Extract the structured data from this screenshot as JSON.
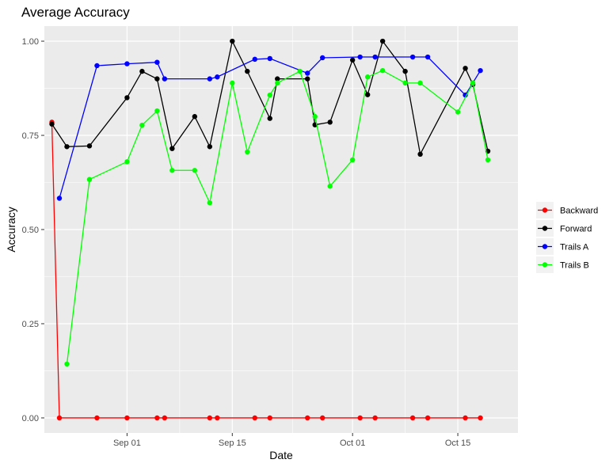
{
  "chart_data": {
    "type": "line",
    "title": "Average Accuracy",
    "xlabel": "Date",
    "ylabel": "Accuracy",
    "x_scale": "date",
    "xlim": [
      "2023-08-21",
      "2023-10-23"
    ],
    "ylim": [
      -0.04,
      1.04
    ],
    "x_ticks": [
      {
        "date": "2023-09-01",
        "label": "Sep 01"
      },
      {
        "date": "2023-09-15",
        "label": "Sep 15"
      },
      {
        "date": "2023-10-01",
        "label": "Oct 01"
      },
      {
        "date": "2023-10-15",
        "label": "Oct 15"
      }
    ],
    "y_ticks": [
      {
        "value": 0.0,
        "label": "0.00"
      },
      {
        "value": 0.25,
        "label": "0.25"
      },
      {
        "value": 0.5,
        "label": "0.50"
      },
      {
        "value": 0.75,
        "label": "0.75"
      },
      {
        "value": 1.0,
        "label": "1.00"
      }
    ],
    "grid": true,
    "legend_position": "right",
    "series": [
      {
        "name": "Backward",
        "color": "#ff0000",
        "points": [
          {
            "x": "2023-08-22",
            "y": 0.785
          },
          {
            "x": "2023-08-23",
            "y": 0.0
          },
          {
            "x": "2023-08-28",
            "y": 0.0
          },
          {
            "x": "2023-09-01",
            "y": 0.0
          },
          {
            "x": "2023-09-05",
            "y": 0.0
          },
          {
            "x": "2023-09-06",
            "y": 0.0
          },
          {
            "x": "2023-09-12",
            "y": 0.0
          },
          {
            "x": "2023-09-13",
            "y": 0.0
          },
          {
            "x": "2023-09-18",
            "y": 0.0
          },
          {
            "x": "2023-09-20",
            "y": 0.0
          },
          {
            "x": "2023-09-25",
            "y": 0.0
          },
          {
            "x": "2023-09-27",
            "y": 0.0
          },
          {
            "x": "2023-10-02",
            "y": 0.0
          },
          {
            "x": "2023-10-04",
            "y": 0.0
          },
          {
            "x": "2023-10-09",
            "y": 0.0
          },
          {
            "x": "2023-10-11",
            "y": 0.0
          },
          {
            "x": "2023-10-16",
            "y": 0.0
          },
          {
            "x": "2023-10-18",
            "y": 0.0
          }
        ]
      },
      {
        "name": "Forward",
        "color": "#000000",
        "points": [
          {
            "x": "2023-08-22",
            "y": 0.78
          },
          {
            "x": "2023-08-24",
            "y": 0.72
          },
          {
            "x": "2023-08-27",
            "y": 0.722
          },
          {
            "x": "2023-09-01",
            "y": 0.85
          },
          {
            "x": "2023-09-03",
            "y": 0.92
          },
          {
            "x": "2023-09-05",
            "y": 0.9
          },
          {
            "x": "2023-09-07",
            "y": 0.715
          },
          {
            "x": "2023-09-10",
            "y": 0.8
          },
          {
            "x": "2023-09-12",
            "y": 0.72
          },
          {
            "x": "2023-09-15",
            "y": 1.0
          },
          {
            "x": "2023-09-17",
            "y": 0.92
          },
          {
            "x": "2023-09-20",
            "y": 0.795
          },
          {
            "x": "2023-09-21",
            "y": 0.9
          },
          {
            "x": "2023-09-25",
            "y": 0.9
          },
          {
            "x": "2023-09-26",
            "y": 0.778
          },
          {
            "x": "2023-09-28",
            "y": 0.785
          },
          {
            "x": "2023-10-01",
            "y": 0.95
          },
          {
            "x": "2023-10-03",
            "y": 0.858
          },
          {
            "x": "2023-10-05",
            "y": 1.0
          },
          {
            "x": "2023-10-08",
            "y": 0.92
          },
          {
            "x": "2023-10-10",
            "y": 0.7
          },
          {
            "x": "2023-10-16",
            "y": 0.928
          },
          {
            "x": "2023-10-17",
            "y": 0.885
          },
          {
            "x": "2023-10-19",
            "y": 0.708
          }
        ]
      },
      {
        "name": "Trails A",
        "color": "#0000ff",
        "points": [
          {
            "x": "2023-08-23",
            "y": 0.583
          },
          {
            "x": "2023-08-28",
            "y": 0.935
          },
          {
            "x": "2023-09-01",
            "y": 0.94
          },
          {
            "x": "2023-09-05",
            "y": 0.944
          },
          {
            "x": "2023-09-06",
            "y": 0.9
          },
          {
            "x": "2023-09-12",
            "y": 0.9
          },
          {
            "x": "2023-09-13",
            "y": 0.905
          },
          {
            "x": "2023-09-18",
            "y": 0.952
          },
          {
            "x": "2023-09-20",
            "y": 0.954
          },
          {
            "x": "2023-09-25",
            "y": 0.915
          },
          {
            "x": "2023-09-27",
            "y": 0.956
          },
          {
            "x": "2023-10-02",
            "y": 0.958
          },
          {
            "x": "2023-10-04",
            "y": 0.958
          },
          {
            "x": "2023-10-09",
            "y": 0.958
          },
          {
            "x": "2023-10-11",
            "y": 0.958
          },
          {
            "x": "2023-10-16",
            "y": 0.857
          },
          {
            "x": "2023-10-18",
            "y": 0.922
          }
        ]
      },
      {
        "name": "Trails B",
        "color": "#00ff00",
        "points": [
          {
            "x": "2023-08-24",
            "y": 0.143
          },
          {
            "x": "2023-08-27",
            "y": 0.633
          },
          {
            "x": "2023-09-01",
            "y": 0.68
          },
          {
            "x": "2023-09-03",
            "y": 0.777
          },
          {
            "x": "2023-09-05",
            "y": 0.815
          },
          {
            "x": "2023-09-07",
            "y": 0.657
          },
          {
            "x": "2023-09-10",
            "y": 0.657
          },
          {
            "x": "2023-09-12",
            "y": 0.571
          },
          {
            "x": "2023-09-15",
            "y": 0.889
          },
          {
            "x": "2023-09-17",
            "y": 0.706
          },
          {
            "x": "2023-09-20",
            "y": 0.857
          },
          {
            "x": "2023-09-21",
            "y": 0.889
          },
          {
            "x": "2023-09-24",
            "y": 0.92
          },
          {
            "x": "2023-09-26",
            "y": 0.8
          },
          {
            "x": "2023-09-28",
            "y": 0.615
          },
          {
            "x": "2023-10-01",
            "y": 0.685
          },
          {
            "x": "2023-10-03",
            "y": 0.905
          },
          {
            "x": "2023-10-05",
            "y": 0.922
          },
          {
            "x": "2023-10-08",
            "y": 0.889
          },
          {
            "x": "2023-10-10",
            "y": 0.889
          },
          {
            "x": "2023-10-15",
            "y": 0.812
          },
          {
            "x": "2023-10-17",
            "y": 0.889
          },
          {
            "x": "2023-10-19",
            "y": 0.685
          }
        ]
      }
    ]
  }
}
